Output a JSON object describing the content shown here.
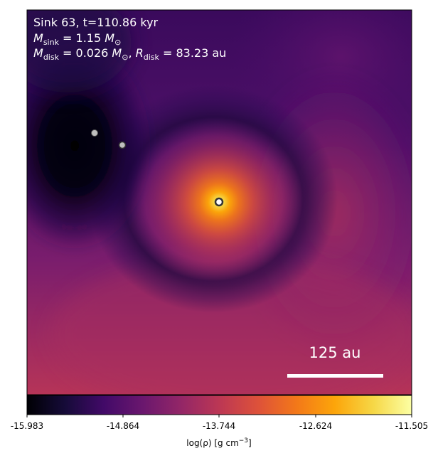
{
  "panel": {
    "title": "Sink 63, t=110.86 kyr",
    "m_sink": {
      "sym": "M",
      "sub": "sink",
      "eq": " = 1.15 ",
      "unit": "M",
      "unit_sub": "⊙"
    },
    "m_disk": {
      "sym": "M",
      "sub": "disk",
      "eq": " = 0.026 ",
      "unit": "M",
      "unit_sub": "⊙",
      "sep": ", ",
      "sym2": "R",
      "sub2": "disk",
      "eq2": " = 83.23 au"
    },
    "scale_bar_label": "125 au"
  },
  "colorbar": {
    "colormap": "inferno",
    "ticks": [
      "-15.983",
      "-14.864",
      "-13.744",
      "-12.624",
      "-11.505"
    ],
    "label_pre": "log(ρ) [g cm",
    "label_exp": "−3",
    "label_post": "]"
  },
  "colors": {
    "background_dark": "#000004",
    "disk_center": "#fcffa4",
    "sink_primary_edge": "#333333",
    "sink_secondary_fill": "#bfbfbf"
  },
  "sinks": [
    {
      "name": "sink-primary",
      "role": "central"
    },
    {
      "name": "sink-companion-1",
      "role": "secondary"
    },
    {
      "name": "sink-companion-2",
      "role": "secondary"
    }
  ]
}
